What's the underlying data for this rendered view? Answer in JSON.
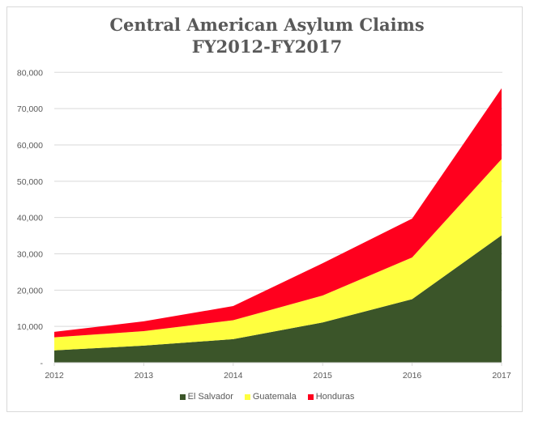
{
  "chart_data": {
    "type": "area",
    "stacked": true,
    "title_lines": [
      "Central American Asylum Claims",
      "FY2012-FY2017"
    ],
    "xlabel": "",
    "ylabel": "",
    "categories": [
      "2012",
      "2013",
      "2014",
      "2015",
      "2016",
      "2017"
    ],
    "ylim": [
      0,
      80000
    ],
    "yticks": [
      0,
      10000,
      20000,
      30000,
      40000,
      50000,
      60000,
      70000,
      80000
    ],
    "ytick_labels": [
      "-",
      "10,000",
      "20,000",
      "30,000",
      "40,000",
      "50,000",
      "60,000",
      "70,000",
      "80,000"
    ],
    "grid": true,
    "legend_position": "bottom",
    "series": [
      {
        "name": "El Salvador",
        "color": "#3b5529",
        "values": [
          3400,
          4700,
          6500,
          11100,
          17500,
          35100
        ]
      },
      {
        "name": "Guatemala",
        "color": "#ffff3f",
        "values": [
          3600,
          4000,
          5200,
          7400,
          11500,
          21000
        ]
      },
      {
        "name": "Honduras",
        "color": "#ff001e",
        "values": [
          1500,
          2700,
          3900,
          8900,
          10700,
          19500
        ]
      }
    ]
  }
}
